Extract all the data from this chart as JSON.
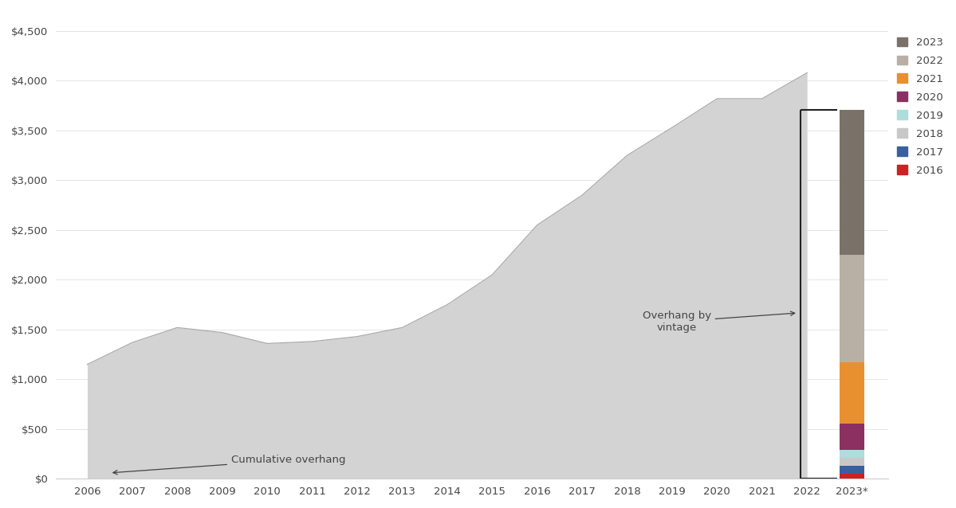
{
  "area_years": [
    2006,
    2007,
    2008,
    2009,
    2010,
    2011,
    2012,
    2013,
    2014,
    2015,
    2016,
    2017,
    2018,
    2019,
    2020,
    2021,
    2022
  ],
  "area_values": [
    1150,
    1370,
    1520,
    1470,
    1360,
    1380,
    1430,
    1520,
    1750,
    2050,
    2550,
    2850,
    3250,
    3530,
    3820,
    3820,
    4080
  ],
  "bar_segments": [
    {
      "label": "2016",
      "value": 55,
      "color": "#cc2222"
    },
    {
      "label": "2017",
      "value": 80,
      "color": "#3a5fa0"
    },
    {
      "label": "2018",
      "value": 80,
      "color": "#c8c8c8"
    },
    {
      "label": "2019",
      "value": 80,
      "color": "#aedddd"
    },
    {
      "label": "2020",
      "value": 260,
      "color": "#8b3060"
    },
    {
      "label": "2021",
      "value": 620,
      "color": "#e89030"
    },
    {
      "label": "2022",
      "value": 1080,
      "color": "#b8b0a5"
    },
    {
      "label": "2023",
      "value": 1450,
      "color": "#7a7268"
    }
  ],
  "area_color": "#d3d3d3",
  "area_edge_color": "#aaaaaa",
  "ylim": [
    0,
    4700
  ],
  "yticks": [
    0,
    500,
    1000,
    1500,
    2000,
    2500,
    3000,
    3500,
    4000,
    4500
  ],
  "ytick_labels": [
    "$0",
    "$500",
    "$1,000",
    "$1,500",
    "$2,000",
    "$2,500",
    "$3,000",
    "$3,500",
    "$4,000",
    "$4,500"
  ],
  "xlabel_years": [
    "2006",
    "2007",
    "2008",
    "2009",
    "2010",
    "2011",
    "2012",
    "2013",
    "2014",
    "2015",
    "2016",
    "2017",
    "2018",
    "2019",
    "2020",
    "2021",
    "2022",
    "2023*"
  ],
  "cumulative_label": "Cumulative overhang",
  "vintage_label": "Overhang by\nvintage",
  "background_color": "#ffffff",
  "font_color": "#444444",
  "legend_fontsize": 9.5,
  "axis_fontsize": 9.5
}
